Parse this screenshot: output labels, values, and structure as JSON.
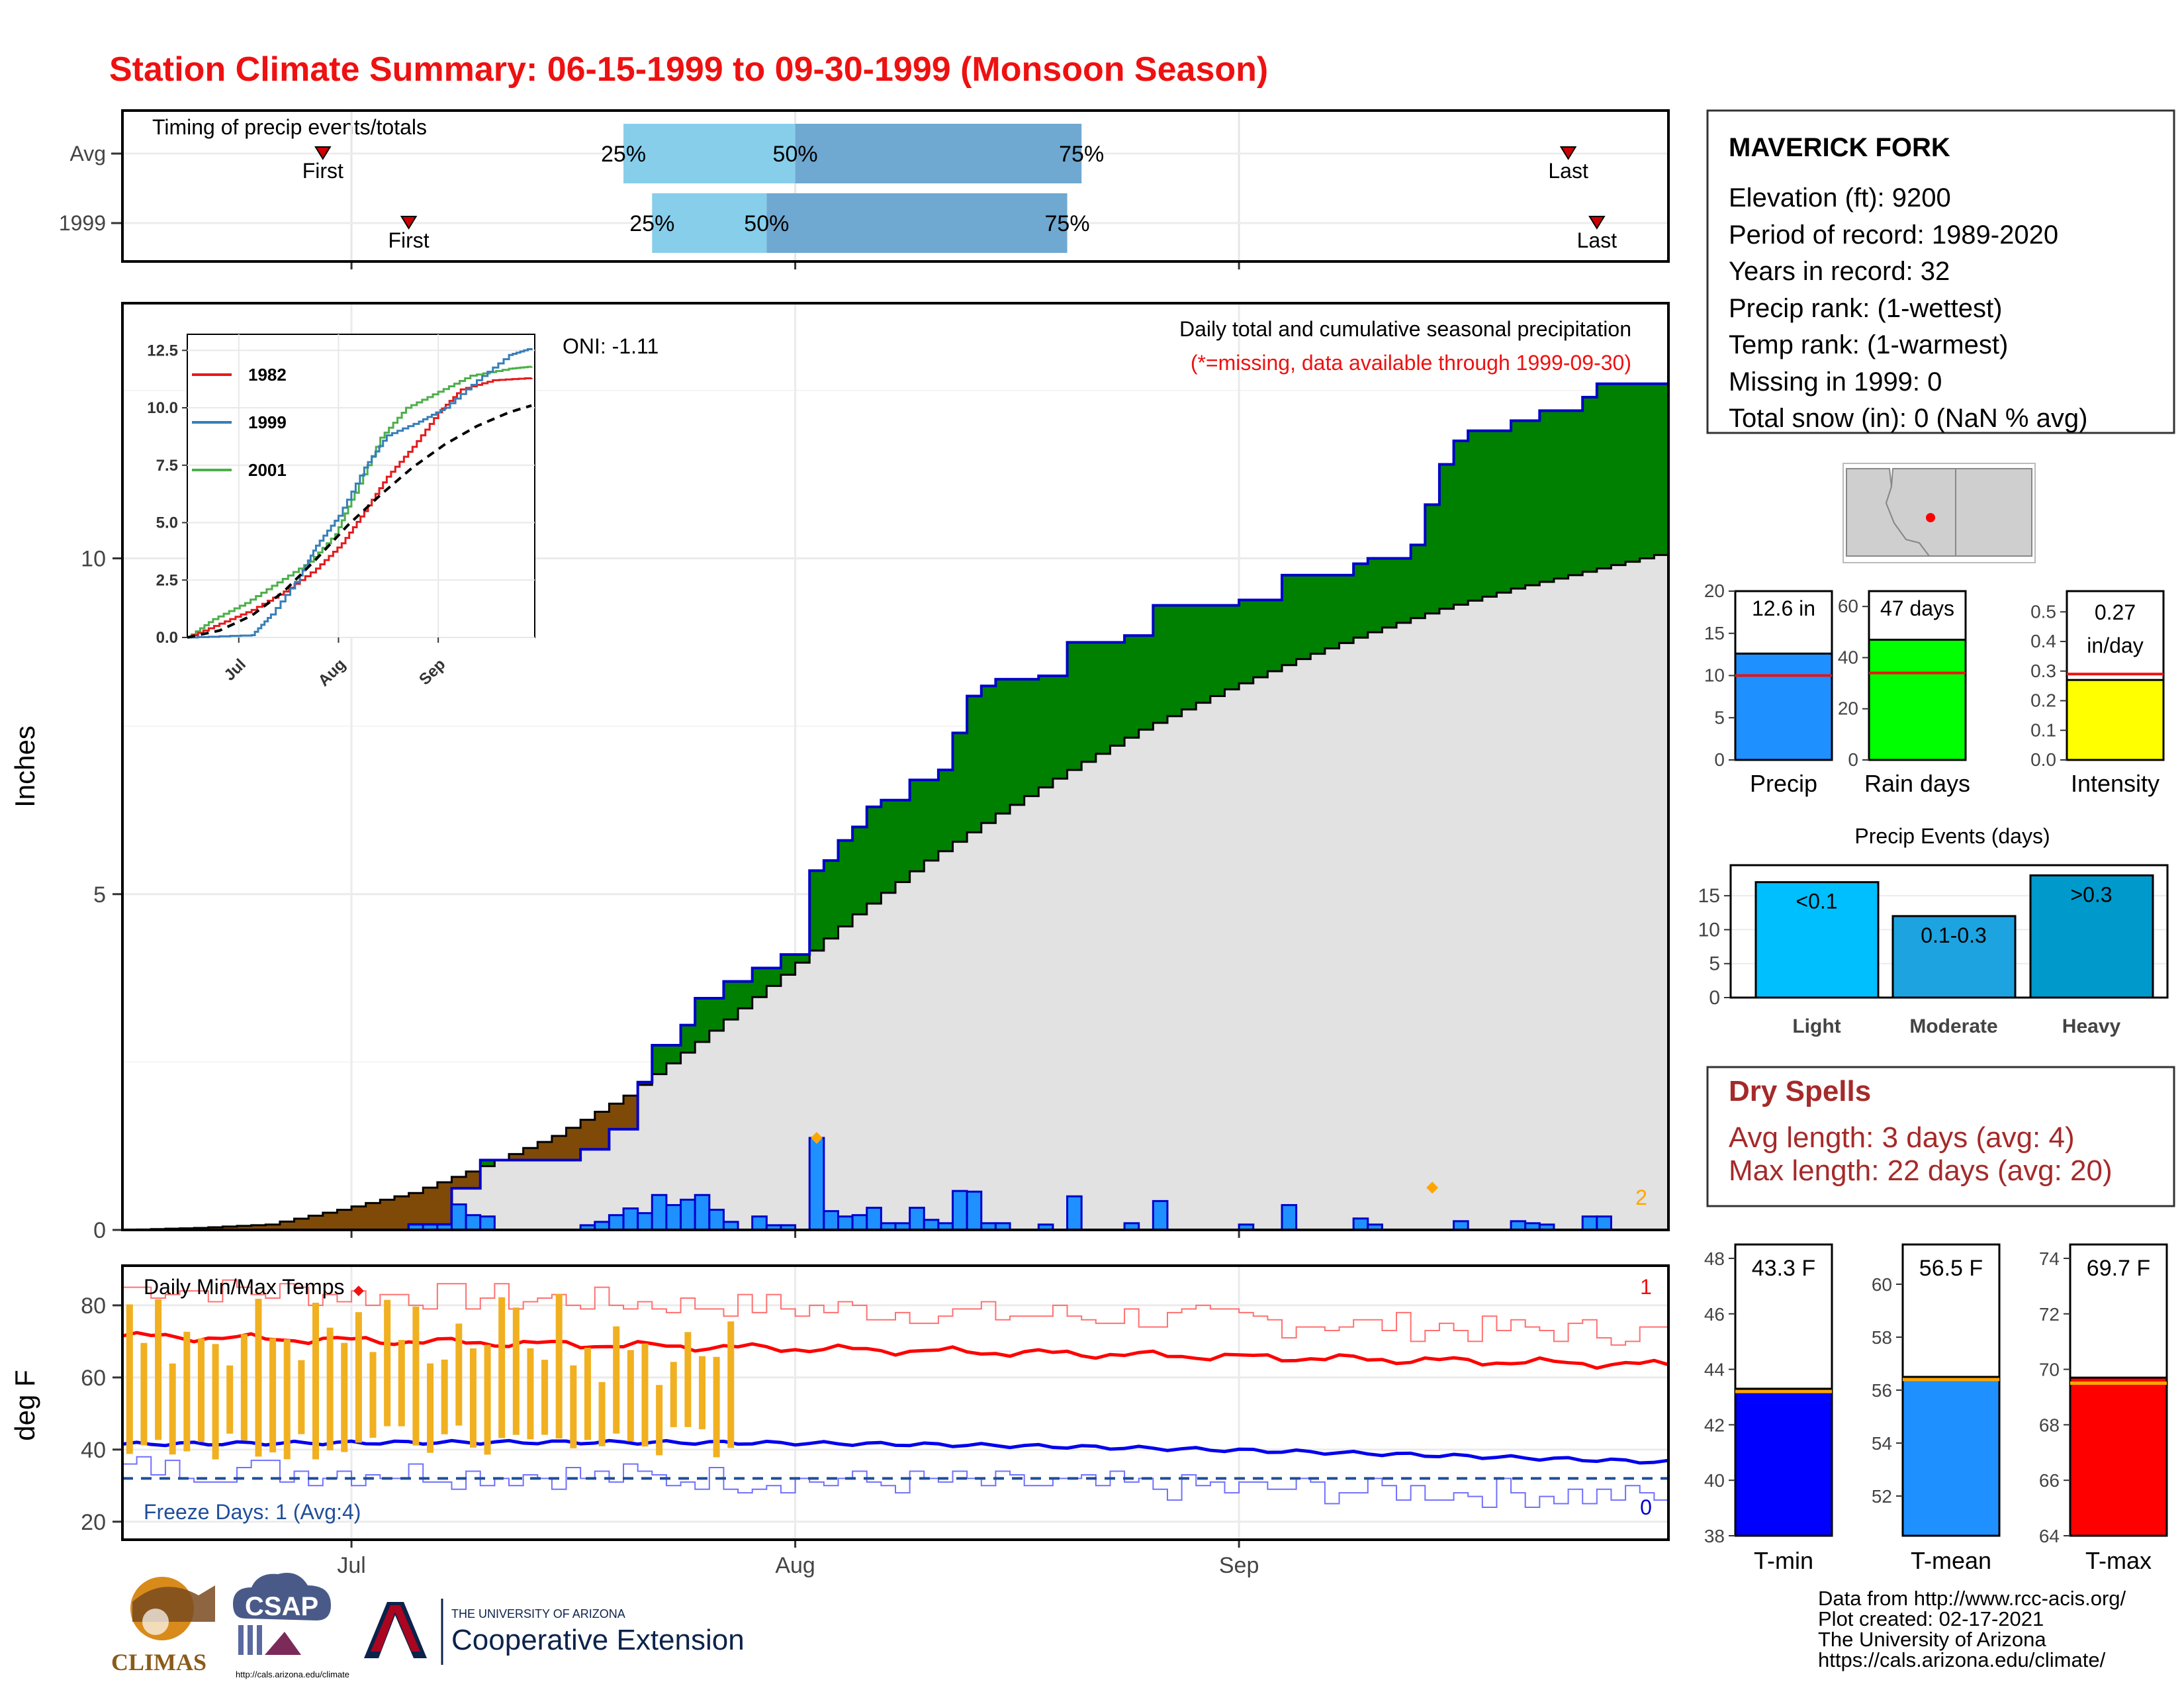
{
  "title": "Station Climate Summary: 06-15-1999 to 09-30-1999 (Monsoon Season)",
  "colors": {
    "title": "#ee1111",
    "brown": "#7f4a08",
    "green": "#008000",
    "navy": "#0000cc",
    "bar_blue": "#1e90ff",
    "grey_area": "#e2e2e2",
    "light_blue_timing": "#87ceeb",
    "mid_blue_timing": "#6fa8d0",
    "orange": "#ffa500",
    "gold_bars": "#f0b020",
    "dry_red": "#a52a2a",
    "light_events": "#00bfff",
    "moderate_events": "#1ca3e0",
    "heavy_events": "#0099cc",
    "rain_days_green": "#00ff00",
    "intensity_yellow": "#ffff00"
  },
  "timing": {
    "title": "Timing of precip events/totals",
    "rows": [
      {
        "label": "Avg",
        "first_date": "1999-06-29",
        "last_date": "1999-09-24",
        "p25": "1999-07-20",
        "p50": "1999-08-01",
        "p75": "1999-08-21",
        "first_label": "First",
        "last_label": "Last",
        "p25_label": "25%",
        "p50_label": "50%",
        "p75_label": "75%"
      },
      {
        "label": "1999",
        "first_date": "1999-07-05",
        "last_date": "1999-09-26",
        "p25": "1999-07-22",
        "p50": "1999-07-30",
        "p75": "1999-08-20",
        "first_label": "First",
        "last_label": "Last",
        "p25_label": "25%",
        "p50_label": "50%",
        "p75_label": "75%"
      }
    ],
    "x_ticks": [
      "1999-07-01",
      "1999-08-01",
      "1999-09-01"
    ]
  },
  "station": {
    "name": "MAVERICK FORK",
    "lines": [
      "Elevation (ft): 9200",
      "Period of record: 1989-2020",
      "Years in record: 32",
      "Precip rank:  (1-wettest)",
      "Temp rank:  (1-warmest)",
      "Missing in 1999: 0",
      "Total snow (in): 0 (NaN % avg)"
    ]
  },
  "main_panel": {
    "ylabel": "Inches",
    "oni": "ONI: -1.11",
    "caption1": "Daily total and cumulative seasonal precipitation",
    "caption2": "(*=missing, data available through 1999-09-30)",
    "corner_count": "2",
    "x_tick_labels": [
      "Jul",
      "Aug",
      "Sep"
    ]
  },
  "inset": {
    "legend": [
      {
        "name": "1982",
        "color": "#e41a1c"
      },
      {
        "name": "1999",
        "color": "#377eb8"
      },
      {
        "name": "2001",
        "color": "#4daf4a"
      }
    ],
    "y_ticks": [
      "0.0",
      "2.5",
      "5.0",
      "7.5",
      "10.0",
      "12.5"
    ],
    "x_ticks": [
      "Jul",
      "Aug",
      "Sep"
    ]
  },
  "summary_bars": [
    {
      "label": "Precip",
      "value_text": "12.6 in",
      "value": 12.6,
      "avg": 10.0,
      "ymax": 20,
      "ticks": [
        0,
        5,
        10,
        15,
        20
      ],
      "color": "#1e90ff"
    },
    {
      "label": "Rain days",
      "value_text": "47 days",
      "value": 47,
      "avg": 34,
      "ymax": 66,
      "ticks": [
        0,
        20,
        40,
        60
      ],
      "color": "#00ff00"
    },
    {
      "label": "Intensity",
      "value_text": "0.27",
      "value_text2": "in/day",
      "value": 0.27,
      "avg": 0.29,
      "ymax": 0.57,
      "ticks": [
        "0.0",
        "0.1",
        "0.2",
        "0.3",
        "0.4",
        "0.5"
      ],
      "color": "#ffff00"
    }
  ],
  "precip_events": {
    "title": "Precip Events (days)",
    "ticks": [
      0,
      5,
      10,
      15
    ],
    "bars": [
      {
        "name": "Light",
        "label": "<0.1",
        "value": 17
      },
      {
        "name": "Moderate",
        "label": "0.1-0.3",
        "value": 12
      },
      {
        "name": "Heavy",
        "label": ">0.3",
        "value": 18
      }
    ]
  },
  "dry_spells": {
    "title": "Dry Spells",
    "line1": "Avg length: 3 days (avg: 4)",
    "line2": "Max length: 22 days (avg: 20)"
  },
  "temp_panel": {
    "title": "Daily Min/Max Temps",
    "ylabel": "deg F",
    "freeze": "Freeze Days: 1 (Avg:4)",
    "max_count": "1",
    "min_count": "0",
    "y_ticks": [
      20,
      40,
      60,
      80
    ],
    "freeze_line": 32
  },
  "temp_bars": [
    {
      "label": "T-min",
      "value_text": "43.3 F",
      "value": 43.3,
      "avg": 43.2,
      "ymin": 38,
      "ymax": 48.5,
      "ticks": [
        38,
        40,
        42,
        44,
        46,
        48
      ],
      "color": "#0000ff"
    },
    {
      "label": "T-mean",
      "value_text": "56.5 F",
      "value": 56.5,
      "avg": 56.4,
      "ymin": 50.5,
      "ymax": 61.5,
      "ticks": [
        52,
        54,
        56,
        58,
        60
      ],
      "color": "#1e90ff"
    },
    {
      "label": "T-max",
      "value_text": "69.7 F",
      "value": 69.7,
      "avg": 69.5,
      "ymin": 64,
      "ymax": 74.5,
      "ticks": [
        64,
        66,
        68,
        70,
        72,
        74
      ],
      "color": "#ff0000"
    }
  ],
  "footer": {
    "line1": "Data from http://www.rcc-acis.org/",
    "line2": "Plot created: 02-17-2021",
    "line3": "The University of Arizona",
    "line4": "https://cals.arizona.edu/climate/"
  },
  "logos": {
    "climas": "CLIMAS",
    "csap": "CSAP",
    "csap_url": "http://cals.arizona.edu/climate",
    "ua_small": "THE UNIVERSITY OF ARIZONA",
    "ua_big": "Cooperative Extension"
  },
  "chart_data": {
    "type": "area",
    "x_start": "1999-06-15",
    "x_end": "1999-09-30",
    "ylim": [
      0,
      13.8
    ],
    "y_ticks": [
      0,
      5,
      10
    ],
    "daily_precip": [
      {
        "date": "1999-07-05",
        "value": 0.08
      },
      {
        "date": "1999-07-06",
        "value": 0.08
      },
      {
        "date": "1999-07-07",
        "value": 0.08
      },
      {
        "date": "1999-07-08",
        "value": 0.38
      },
      {
        "date": "1999-07-09",
        "value": 0.22
      },
      {
        "date": "1999-07-10",
        "value": 0.2
      },
      {
        "date": "1999-07-17",
        "value": 0.07
      },
      {
        "date": "1999-07-18",
        "value": 0.12
      },
      {
        "date": "1999-07-19",
        "value": 0.22
      },
      {
        "date": "1999-07-20",
        "value": 0.32
      },
      {
        "date": "1999-07-21",
        "value": 0.25
      },
      {
        "date": "1999-07-22",
        "value": 0.52
      },
      {
        "date": "1999-07-23",
        "value": 0.37
      },
      {
        "date": "1999-07-24",
        "value": 0.45
      },
      {
        "date": "1999-07-25",
        "value": 0.52
      },
      {
        "date": "1999-07-26",
        "value": 0.3
      },
      {
        "date": "1999-07-27",
        "value": 0.12
      },
      {
        "date": "1999-07-29",
        "value": 0.2
      },
      {
        "date": "1999-07-30",
        "value": 0.07
      },
      {
        "date": "1999-07-31",
        "value": 0.07
      },
      {
        "date": "1999-08-02",
        "value": 1.37
      },
      {
        "date": "1999-08-03",
        "value": 0.28
      },
      {
        "date": "1999-08-04",
        "value": 0.2
      },
      {
        "date": "1999-08-05",
        "value": 0.22
      },
      {
        "date": "1999-08-06",
        "value": 0.33
      },
      {
        "date": "1999-08-07",
        "value": 0.1
      },
      {
        "date": "1999-08-08",
        "value": 0.1
      },
      {
        "date": "1999-08-09",
        "value": 0.33
      },
      {
        "date": "1999-08-10",
        "value": 0.15
      },
      {
        "date": "1999-08-11",
        "value": 0.1
      },
      {
        "date": "1999-08-12",
        "value": 0.58
      },
      {
        "date": "1999-08-13",
        "value": 0.57
      },
      {
        "date": "1999-08-14",
        "value": 0.1
      },
      {
        "date": "1999-08-15",
        "value": 0.1
      },
      {
        "date": "1999-08-18",
        "value": 0.08
      },
      {
        "date": "1999-08-20",
        "value": 0.5
      },
      {
        "date": "1999-08-24",
        "value": 0.1
      },
      {
        "date": "1999-08-26",
        "value": 0.43
      },
      {
        "date": "1999-09-01",
        "value": 0.08
      },
      {
        "date": "1999-09-04",
        "value": 0.37
      },
      {
        "date": "1999-09-09",
        "value": 0.17
      },
      {
        "date": "1999-09-10",
        "value": 0.08
      },
      {
        "date": "1999-09-16",
        "value": 0.13
      },
      {
        "date": "1999-09-20",
        "value": 0.13
      },
      {
        "date": "1999-09-21",
        "value": 0.1
      },
      {
        "date": "1999-09-22",
        "value": 0.08
      },
      {
        "date": "1999-09-25",
        "value": 0.2
      },
      {
        "date": "1999-09-26",
        "value": 0.2
      }
    ],
    "cumulative_1999": [
      {
        "date": "1999-06-15",
        "value": 0.0
      },
      {
        "date": "1999-07-05",
        "value": 0.08
      },
      {
        "date": "1999-07-08",
        "value": 0.62
      },
      {
        "date": "1999-07-10",
        "value": 1.04
      },
      {
        "date": "1999-07-17",
        "value": 1.2
      },
      {
        "date": "1999-07-19",
        "value": 1.5
      },
      {
        "date": "1999-07-21",
        "value": 2.2
      },
      {
        "date": "1999-07-22",
        "value": 2.75
      },
      {
        "date": "1999-07-24",
        "value": 3.05
      },
      {
        "date": "1999-07-25",
        "value": 3.45
      },
      {
        "date": "1999-07-27",
        "value": 3.7
      },
      {
        "date": "1999-07-29",
        "value": 3.9
      },
      {
        "date": "1999-07-31",
        "value": 4.1
      },
      {
        "date": "1999-08-02",
        "value": 5.35
      },
      {
        "date": "1999-08-03",
        "value": 5.5
      },
      {
        "date": "1999-08-04",
        "value": 5.8
      },
      {
        "date": "1999-08-05",
        "value": 6.0
      },
      {
        "date": "1999-08-06",
        "value": 6.3
      },
      {
        "date": "1999-08-07",
        "value": 6.4
      },
      {
        "date": "1999-08-09",
        "value": 6.7
      },
      {
        "date": "1999-08-11",
        "value": 6.85
      },
      {
        "date": "1999-08-12",
        "value": 7.4
      },
      {
        "date": "1999-08-13",
        "value": 7.95
      },
      {
        "date": "1999-08-14",
        "value": 8.1
      },
      {
        "date": "1999-08-15",
        "value": 8.2
      },
      {
        "date": "1999-08-18",
        "value": 8.25
      },
      {
        "date": "1999-08-20",
        "value": 8.75
      },
      {
        "date": "1999-08-24",
        "value": 8.85
      },
      {
        "date": "1999-08-26",
        "value": 9.3
      },
      {
        "date": "1999-09-01",
        "value": 9.38
      },
      {
        "date": "1999-09-04",
        "value": 9.75
      },
      {
        "date": "1999-09-09",
        "value": 9.92
      },
      {
        "date": "1999-09-10",
        "value": 10.0
      },
      {
        "date": "1999-09-13",
        "value": 10.2
      },
      {
        "date": "1999-09-14",
        "value": 10.8
      },
      {
        "date": "1999-09-15",
        "value": 11.4
      },
      {
        "date": "1999-09-16",
        "value": 11.75
      },
      {
        "date": "1999-09-17",
        "value": 11.9
      },
      {
        "date": "1999-09-20",
        "value": 12.05
      },
      {
        "date": "1999-09-22",
        "value": 12.2
      },
      {
        "date": "1999-09-25",
        "value": 12.4
      },
      {
        "date": "1999-09-26",
        "value": 12.6
      },
      {
        "date": "1999-09-30",
        "value": 12.6
      }
    ],
    "cumulative_avg": [
      {
        "date": "1999-06-15",
        "value": 0.0
      },
      {
        "date": "1999-06-20",
        "value": 0.03
      },
      {
        "date": "1999-06-25",
        "value": 0.08
      },
      {
        "date": "1999-06-30",
        "value": 0.3
      },
      {
        "date": "1999-07-05",
        "value": 0.55
      },
      {
        "date": "1999-07-10",
        "value": 0.95
      },
      {
        "date": "1999-07-15",
        "value": 1.4
      },
      {
        "date": "1999-07-20",
        "value": 2.0
      },
      {
        "date": "1999-07-25",
        "value": 2.8
      },
      {
        "date": "1999-07-31",
        "value": 3.8
      },
      {
        "date": "1999-08-05",
        "value": 4.7
      },
      {
        "date": "1999-08-10",
        "value": 5.5
      },
      {
        "date": "1999-08-15",
        "value": 6.2
      },
      {
        "date": "1999-08-20",
        "value": 6.85
      },
      {
        "date": "1999-08-25",
        "value": 7.45
      },
      {
        "date": "1999-08-31",
        "value": 8.05
      },
      {
        "date": "1999-09-05",
        "value": 8.5
      },
      {
        "date": "1999-09-10",
        "value": 8.9
      },
      {
        "date": "1999-09-15",
        "value": 9.25
      },
      {
        "date": "1999-09-20",
        "value": 9.55
      },
      {
        "date": "1999-09-25",
        "value": 9.8
      },
      {
        "date": "1999-09-30",
        "value": 10.05
      }
    ],
    "inset_series": {
      "1982": [
        [
          0,
          0
        ],
        [
          10,
          0.6
        ],
        [
          20,
          1.2
        ],
        [
          30,
          2.0
        ],
        [
          40,
          3.0
        ],
        [
          48,
          4.1
        ],
        [
          55,
          5.5
        ],
        [
          62,
          7.0
        ],
        [
          70,
          8.3
        ],
        [
          78,
          9.8
        ],
        [
          85,
          10.8
        ],
        [
          95,
          11.2
        ],
        [
          107,
          11.3
        ]
      ],
      "1999": [
        [
          0,
          0
        ],
        [
          20,
          0.1
        ],
        [
          26,
          1.0
        ],
        [
          35,
          2.7
        ],
        [
          40,
          4.0
        ],
        [
          47,
          5.3
        ],
        [
          55,
          7.4
        ],
        [
          62,
          8.8
        ],
        [
          72,
          9.4
        ],
        [
          80,
          10.0
        ],
        [
          90,
          11.2
        ],
        [
          100,
          12.3
        ],
        [
          107,
          12.6
        ]
      ],
      "2001": [
        [
          0,
          0
        ],
        [
          8,
          0.8
        ],
        [
          18,
          1.5
        ],
        [
          28,
          2.4
        ],
        [
          38,
          3.3
        ],
        [
          46,
          4.5
        ],
        [
          52,
          6.3
        ],
        [
          60,
          8.7
        ],
        [
          68,
          10.0
        ],
        [
          78,
          10.7
        ],
        [
          88,
          11.4
        ],
        [
          100,
          11.7
        ],
        [
          107,
          11.8
        ]
      ],
      "avg": [
        [
          0,
          0
        ],
        [
          10,
          0.3
        ],
        [
          20,
          0.95
        ],
        [
          30,
          2.0
        ],
        [
          40,
          3.4
        ],
        [
          50,
          4.9
        ],
        [
          60,
          6.2
        ],
        [
          70,
          7.4
        ],
        [
          80,
          8.4
        ],
        [
          90,
          9.2
        ],
        [
          100,
          9.8
        ],
        [
          107,
          10.1
        ]
      ]
    }
  }
}
